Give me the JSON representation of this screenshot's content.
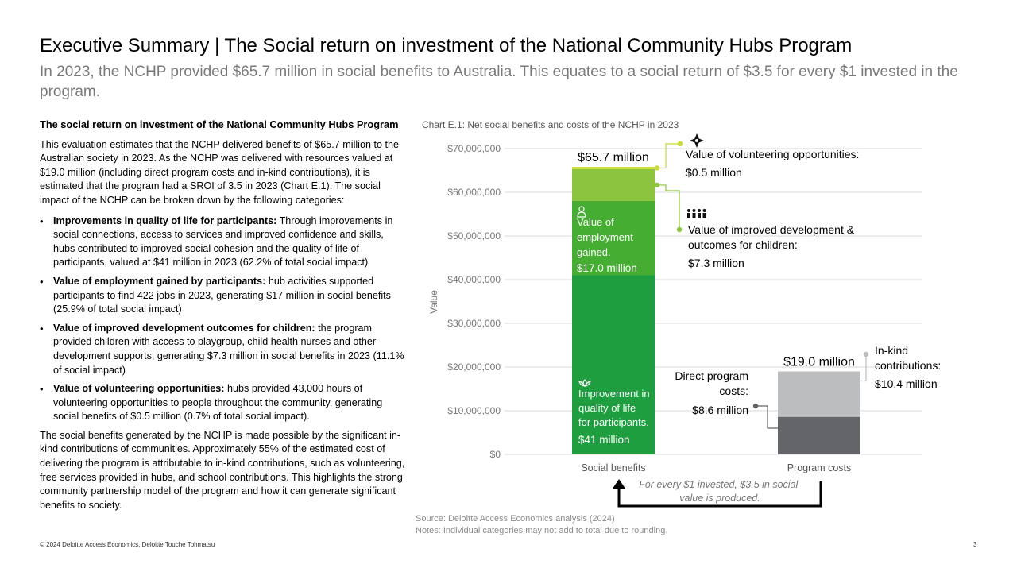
{
  "header": {
    "title": "Executive Summary | The Social return on investment of the National Community Hubs Program",
    "subtitle": "In 2023, the NCHP provided $65.7 million in social benefits to Australia. This equates to a social return of $3.5 for every $1 invested in the program."
  },
  "body": {
    "heading": "The social return on investment of the National Community Hubs Program",
    "intro": "This evaluation estimates that the NCHP delivered benefits of $65.7 million to the Australian society in 2023. As the NCHP was delivered with resources valued at $19.0 million (including direct program costs and in-kind contributions), it is estimated that the program had a SROI of 3.5 in 2023 (Chart E.1). The social impact of the NCHP can be broken down by the following categories:",
    "bullets": [
      {
        "lead": "Improvements in quality of life for participants:",
        "text": " Through improvements in social connections, access to services and improved confidence and skills, hubs contributed to improved social cohesion and the quality of life of participants, valued at $41 million in 2023 (62.2% of total social impact)"
      },
      {
        "lead": "Value of employment gained by participants:",
        "text": " hub activities supported participants to find 422 jobs in 2023, generating $17 million in social benefits (25.9% of total social impact)"
      },
      {
        "lead": "Value of improved development outcomes for children:",
        "text": " the program provided children with access to playgroup, child health nurses and other development supports, generating $7.3 million in social benefits in 2023 (11.1% of social impact)"
      },
      {
        "lead": "Value of volunteering opportunities:",
        "text": " hubs provided 43,000 hours of volunteering opportunities to people throughout the community, generating social benefits of $0.5 million (0.7% of total social impact)."
      }
    ],
    "closing": "The social benefits generated by the NCHP is made possible by the significant in-kind contributions of communities. Approximately 55% of the estimated cost of delivering the program is attributable to in-kind contributions, such as volunteering, free services provided in hubs, and school contributions. This highlights the strong community partnership model of the program and how it can generate significant benefits to society."
  },
  "chart_title": "Chart E.1: Net social benefits and costs of the NCHP in 2023",
  "chart_data": {
    "type": "bar",
    "stacked": true,
    "categories": [
      "Social benefits",
      "Program costs"
    ],
    "ylabel": "Value",
    "ylim": [
      0,
      70000000
    ],
    "yticks": [
      0,
      10000000,
      20000000,
      30000000,
      40000000,
      50000000,
      60000000,
      70000000
    ],
    "ytick_labels": [
      "$0",
      "$10,000,000",
      "$20,000,000",
      "$30,000,000",
      "$40,000,000",
      "$50,000,000",
      "$60,000,000",
      "$70,000,000"
    ],
    "grid": true,
    "totals": [
      "$65.7 million",
      "$19.0 million"
    ],
    "series": [
      {
        "category": "Social benefits",
        "name": "Improvement in quality of life for participants.",
        "value": 41000000,
        "value_label": "$41 million",
        "color": "#1f9e3f"
      },
      {
        "category": "Social benefits",
        "name": "Value of employment gained.",
        "value": 17000000,
        "value_label": "$17.0 million",
        "color": "#45ae32"
      },
      {
        "category": "Social benefits",
        "name": "Value of improved development & outcomes for children:",
        "value": 7300000,
        "value_label": "$7.3 million",
        "color": "#8cc43e"
      },
      {
        "category": "Social benefits",
        "name": "Value of volunteering opportunities:",
        "value": 500000,
        "value_label": "$0.5 million",
        "color": "#c8dc33"
      },
      {
        "category": "Program costs",
        "name": "Direct program costs:",
        "value": 8600000,
        "value_label": "$8.6 million",
        "color": "#636569"
      },
      {
        "category": "Program costs",
        "name": "In-kind contributions:",
        "value": 10400000,
        "value_label": "$10.4 million",
        "color": "#bcbdbf"
      }
    ],
    "annotation": "For every $1 invested, $3.5 in social value is produced."
  },
  "colors": {
    "quality": "#1f9e3f",
    "employment": "#45ae32",
    "children": "#8cc43e",
    "volunteering": "#c8dc33",
    "direct": "#636569",
    "inkind": "#bcbdbf"
  },
  "icons": [
    "volunteer-hands-icon",
    "children-group-icon",
    "employee-icon",
    "lotus-wellbeing-icon"
  ],
  "source": {
    "source_line": "Source: Deloitte Access Economics analysis (2024)",
    "notes_line": "Notes: Individual categories may not add to total due to rounding."
  },
  "footer": {
    "copyright": "© 2024 Deloitte Access Economics, Deloitte Touche Tohmatsu",
    "page": "3"
  }
}
